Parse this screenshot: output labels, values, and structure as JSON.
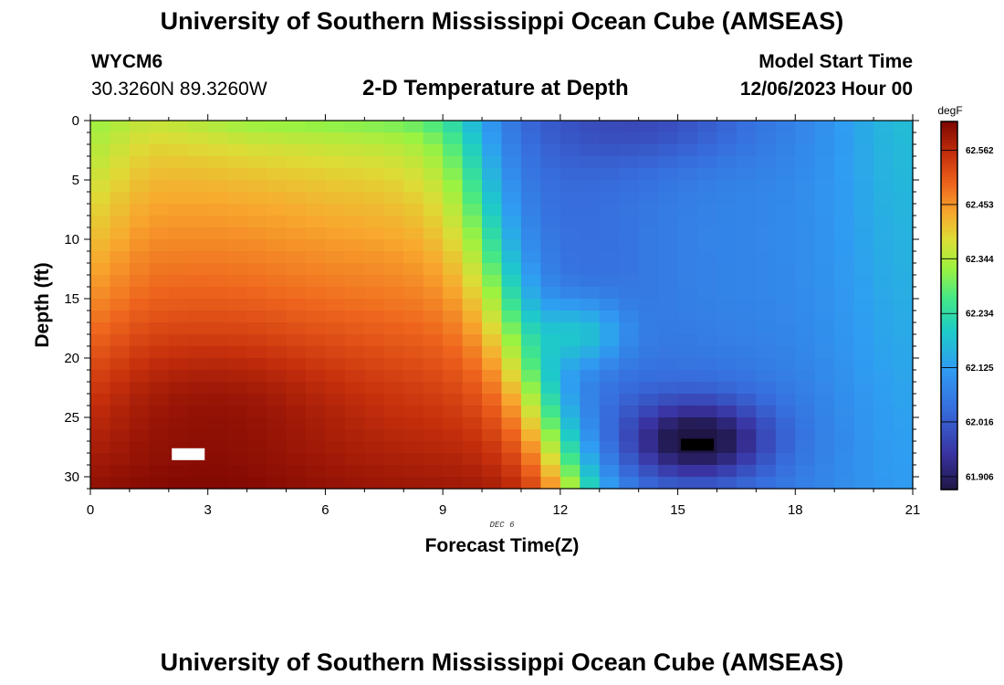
{
  "header": {
    "title": "University of Southern Mississippi Ocean Cube (AMSEAS)",
    "station": "WYCM6",
    "coords": "30.3260N  89.3260W",
    "plot_title": "2-D Temperature at Depth",
    "start_label": "Model Start Time",
    "start_value": "12/06/2023 Hour 00"
  },
  "footer": {
    "title": "University of Southern Mississippi Ocean Cube (AMSEAS)"
  },
  "chart_data": {
    "type": "heatmap",
    "title": "2-D Temperature at Depth",
    "xlabel": "Forecast Time(Z)",
    "ylabel": "Depth (ft)",
    "date_label": "DEC 6",
    "x_range": [
      0,
      21
    ],
    "y_range": [
      0,
      31
    ],
    "x_ticks": [
      0,
      3,
      6,
      9,
      12,
      15,
      18,
      21
    ],
    "y_ticks": [
      0,
      5,
      10,
      15,
      20,
      25,
      30
    ],
    "y_inverted": true,
    "colorbar": {
      "units": "degF",
      "ticks": [
        "62.562",
        "62.453",
        "62.344",
        "62.234",
        "62.125",
        "62.016",
        "61.906"
      ],
      "min": 61.88,
      "max": 62.62
    },
    "missing_cells": [
      {
        "time": 2.5,
        "depth": 28.1,
        "color": "#ffffff"
      },
      {
        "time": 15.5,
        "depth": 27.3,
        "color": "#000000"
      }
    ]
  }
}
